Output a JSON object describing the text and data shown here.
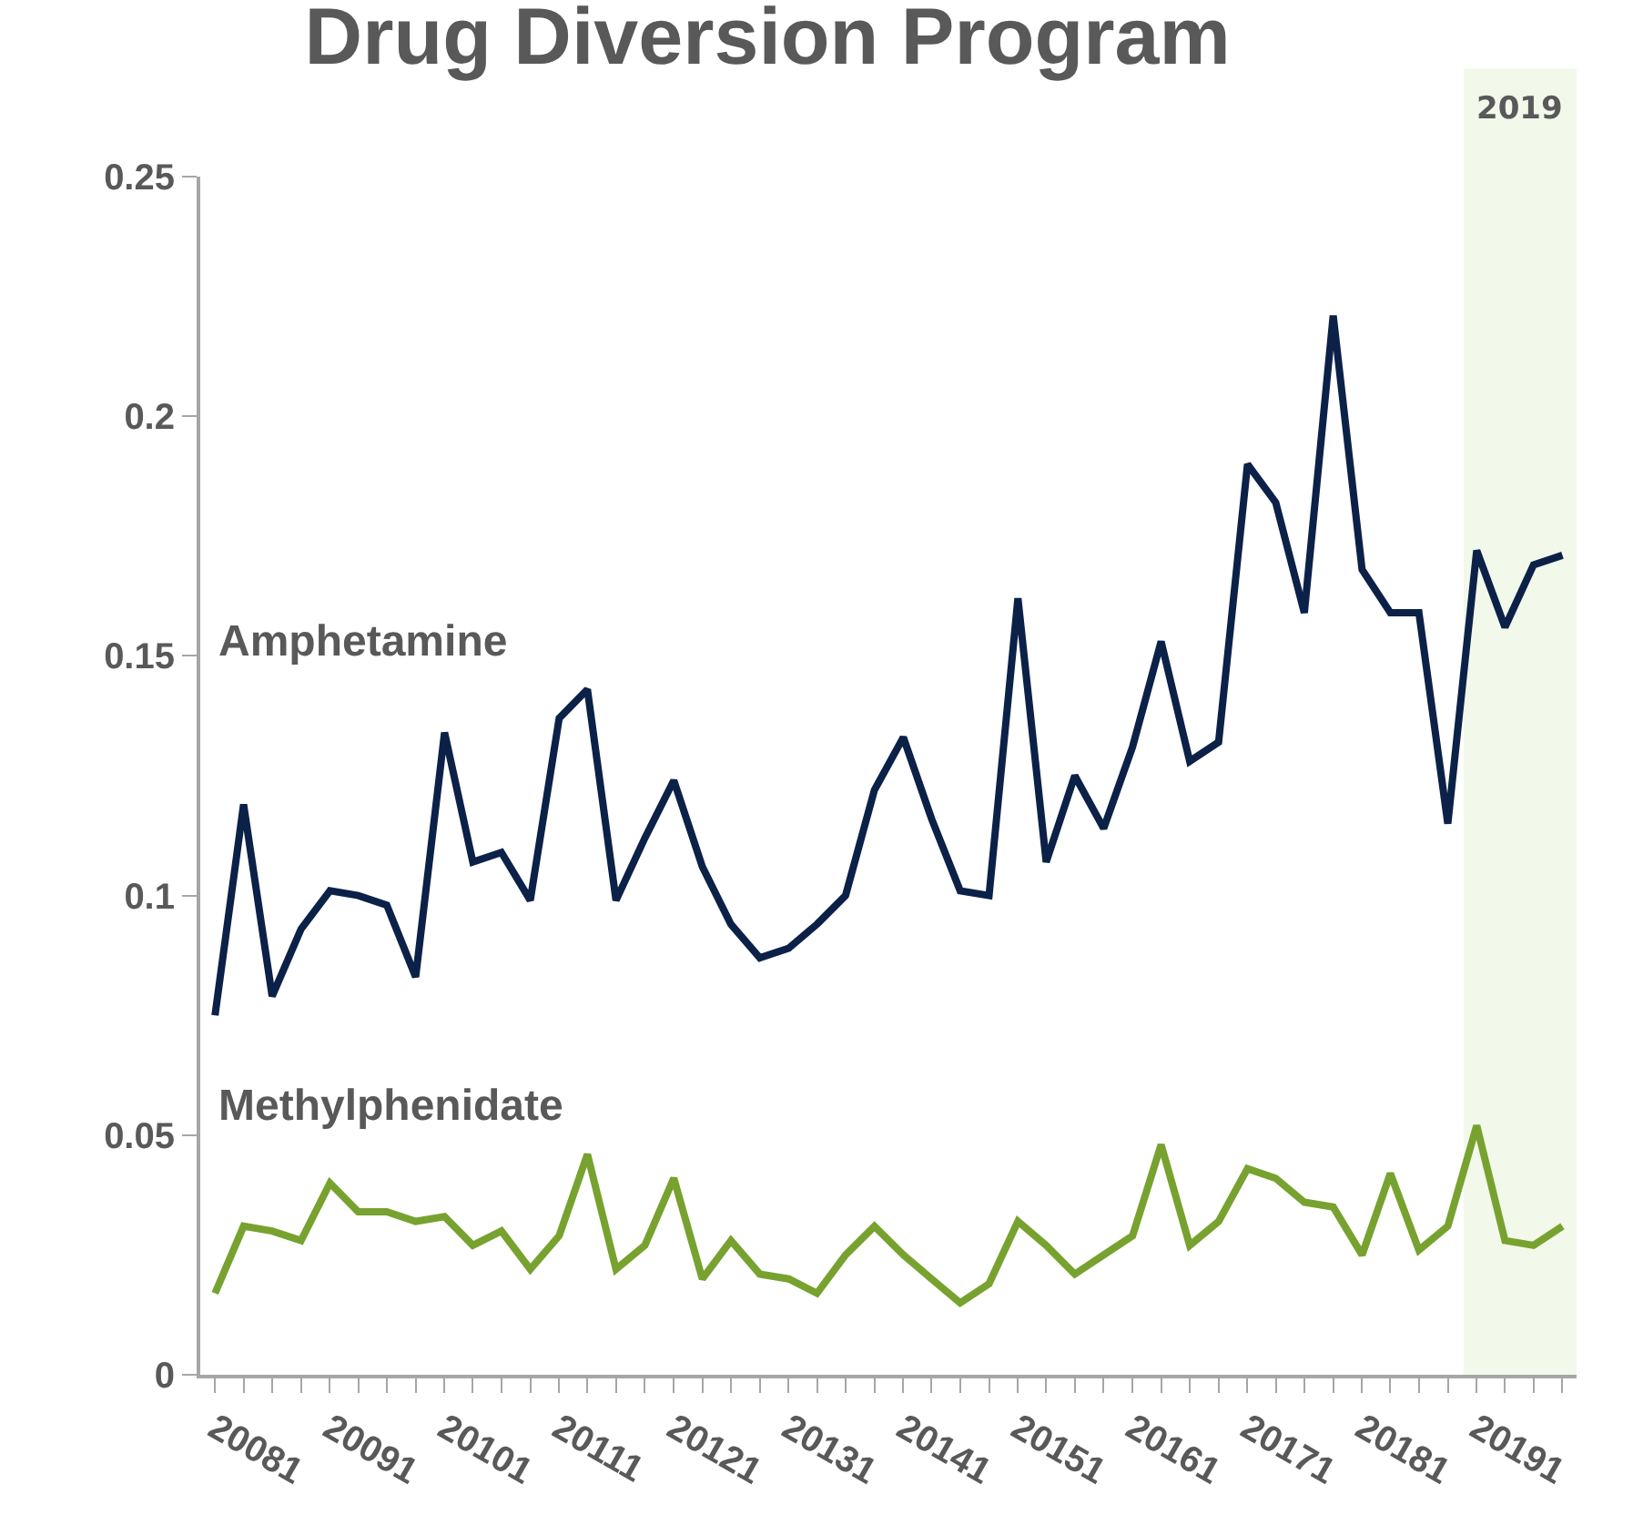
{
  "chart_data": {
    "type": "line",
    "title": "Drug Diversion Program",
    "x": [
      "2008-01",
      "2008-04",
      "2008-07",
      "2008-10",
      "2009-01",
      "2009-04",
      "2009-07",
      "2009-10",
      "2010-01",
      "2010-04",
      "2010-07",
      "2010-10",
      "2011-01",
      "2011-04",
      "2011-07",
      "2011-10",
      "2012-01",
      "2012-04",
      "2012-07",
      "2012-10",
      "2013-01",
      "2013-04",
      "2013-07",
      "2013-10",
      "2014-01",
      "2014-04",
      "2014-07",
      "2014-10",
      "2015-01",
      "2015-04",
      "2015-07",
      "2015-10",
      "2016-01",
      "2016-04",
      "2016-07",
      "2016-10",
      "2017-01",
      "2017-04",
      "2017-07",
      "2017-10",
      "2018-01",
      "2018-04",
      "2018-07",
      "2018-10",
      "2019-01",
      "2019-04",
      "2019-07",
      "2019-10"
    ],
    "xlim": [
      "2007-11-15",
      "2019-11-15"
    ],
    "xticks": [
      {
        "value": "2008-01",
        "label": "20081"
      },
      {
        "value": "2008-04",
        "label": null
      },
      {
        "value": "2008-07",
        "label": null
      },
      {
        "value": "2008-10",
        "label": null
      },
      {
        "value": "2009-01",
        "label": "20091"
      },
      {
        "value": "2009-04",
        "label": null
      },
      {
        "value": "2009-07",
        "label": null
      },
      {
        "value": "2009-10",
        "label": null
      },
      {
        "value": "2010-01",
        "label": "20101"
      },
      {
        "value": "2010-04",
        "label": null
      },
      {
        "value": "2010-07",
        "label": null
      },
      {
        "value": "2010-10",
        "label": null
      },
      {
        "value": "2011-01",
        "label": "20111"
      },
      {
        "value": "2011-04",
        "label": null
      },
      {
        "value": "2011-07",
        "label": null
      },
      {
        "value": "2011-10",
        "label": null
      },
      {
        "value": "2012-01",
        "label": "20121"
      },
      {
        "value": "2012-04",
        "label": null
      },
      {
        "value": "2012-07",
        "label": null
      },
      {
        "value": "2012-10",
        "label": null
      },
      {
        "value": "2013-01",
        "label": "20131"
      },
      {
        "value": "2013-04",
        "label": null
      },
      {
        "value": "2013-07",
        "label": null
      },
      {
        "value": "2013-10",
        "label": null
      },
      {
        "value": "2014-01",
        "label": "20141"
      },
      {
        "value": "2014-04",
        "label": null
      },
      {
        "value": "2014-07",
        "label": null
      },
      {
        "value": "2014-10",
        "label": null
      },
      {
        "value": "2015-01",
        "label": "20151"
      },
      {
        "value": "2015-04",
        "label": null
      },
      {
        "value": "2015-07",
        "label": null
      },
      {
        "value": "2015-10",
        "label": null
      },
      {
        "value": "2016-01",
        "label": "20161"
      },
      {
        "value": "2016-04",
        "label": null
      },
      {
        "value": "2016-07",
        "label": null
      },
      {
        "value": "2016-10",
        "label": null
      },
      {
        "value": "2017-01",
        "label": "20171"
      },
      {
        "value": "2017-04",
        "label": null
      },
      {
        "value": "2017-07",
        "label": null
      },
      {
        "value": "2017-10",
        "label": null
      },
      {
        "value": "2018-01",
        "label": "20181"
      },
      {
        "value": "2018-04",
        "label": null
      },
      {
        "value": "2018-07",
        "label": null
      },
      {
        "value": "2018-10",
        "label": null
      },
      {
        "value": "2019-01",
        "label": "20191"
      },
      {
        "value": "2019-04",
        "label": null
      },
      {
        "value": "2019-07",
        "label": null
      },
      {
        "value": "2019-10",
        "label": null
      }
    ],
    "series": [
      {
        "name": "Amphetamine",
        "color": "#0c2148",
        "values": [
          0.075,
          0.119,
          0.079,
          0.093,
          0.101,
          0.1,
          0.098,
          0.083,
          0.134,
          0.107,
          0.109,
          0.099,
          0.137,
          0.143,
          0.099,
          0.112,
          0.124,
          0.106,
          0.094,
          0.087,
          0.089,
          0.094,
          0.1,
          0.122,
          0.133,
          0.116,
          0.101,
          0.1,
          0.162,
          0.107,
          0.125,
          0.114,
          0.131,
          0.153,
          0.128,
          0.132,
          0.19,
          0.182,
          0.159,
          0.221,
          0.168,
          0.159,
          0.159,
          0.115,
          0.172,
          0.156,
          0.169,
          0.171
        ]
      },
      {
        "name": "Methylphenidate",
        "color": "#77a22f",
        "values": [
          0.017,
          0.031,
          0.03,
          0.028,
          0.04,
          0.034,
          0.034,
          0.032,
          0.033,
          0.027,
          0.03,
          0.022,
          0.029,
          0.046,
          0.022,
          0.027,
          0.041,
          0.02,
          0.028,
          0.021,
          0.02,
          0.017,
          0.025,
          0.031,
          0.025,
          0.02,
          0.015,
          0.019,
          0.032,
          0.027,
          0.021,
          0.025,
          0.029,
          0.048,
          0.027,
          0.032,
          0.043,
          0.041,
          0.036,
          0.035,
          0.025,
          0.042,
          0.026,
          0.031,
          0.052,
          0.028,
          0.027,
          0.031
        ]
      }
    ],
    "ylim": [
      0,
      0.25
    ],
    "yticks": [
      0,
      0.05,
      0.1,
      0.15,
      0.2,
      0.25
    ],
    "bands": [
      {
        "axis": "x",
        "from": "2018-11-20",
        "to": "2019-11-15",
        "label": "2019",
        "color": "#f2f8ea"
      }
    ],
    "grid": false,
    "legend": false,
    "marker": "none",
    "line_style": "solid"
  }
}
